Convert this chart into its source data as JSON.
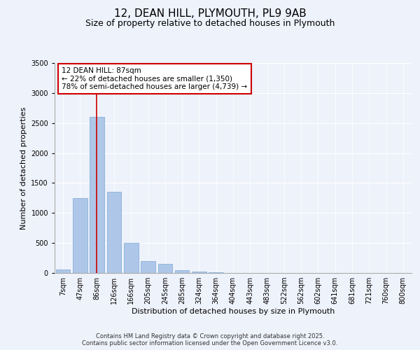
{
  "title_line1": "12, DEAN HILL, PLYMOUTH, PL9 9AB",
  "title_line2": "Size of property relative to detached houses in Plymouth",
  "xlabel": "Distribution of detached houses by size in Plymouth",
  "ylabel": "Number of detached properties",
  "categories": [
    "7sqm",
    "47sqm",
    "86sqm",
    "126sqm",
    "166sqm",
    "205sqm",
    "245sqm",
    "285sqm",
    "324sqm",
    "364sqm",
    "404sqm",
    "443sqm",
    "483sqm",
    "522sqm",
    "562sqm",
    "602sqm",
    "641sqm",
    "681sqm",
    "721sqm",
    "760sqm",
    "800sqm"
  ],
  "values": [
    55,
    1250,
    2600,
    1350,
    500,
    200,
    150,
    50,
    25,
    10,
    5,
    3,
    2,
    0,
    0,
    0,
    0,
    0,
    0,
    0,
    0
  ],
  "bar_color": "#aec6e8",
  "bar_edge_color": "#88b0d8",
  "vline_color": "#cc0000",
  "annotation_text": "12 DEAN HILL: 87sqm\n← 22% of detached houses are smaller (1,350)\n78% of semi-detached houses are larger (4,739) →",
  "annotation_box_color": "#cc0000",
  "ylim": [
    0,
    3500
  ],
  "yticks": [
    0,
    500,
    1000,
    1500,
    2000,
    2500,
    3000,
    3500
  ],
  "background_color": "#eef2fb",
  "plot_bg_color": "#eef2fb",
  "footer_line1": "Contains HM Land Registry data © Crown copyright and database right 2025.",
  "footer_line2": "Contains public sector information licensed under the Open Government Licence v3.0.",
  "title_fontsize": 11,
  "subtitle_fontsize": 9,
  "axis_label_fontsize": 8,
  "tick_fontsize": 7,
  "annotation_fontsize": 7.5,
  "footer_fontsize": 6
}
